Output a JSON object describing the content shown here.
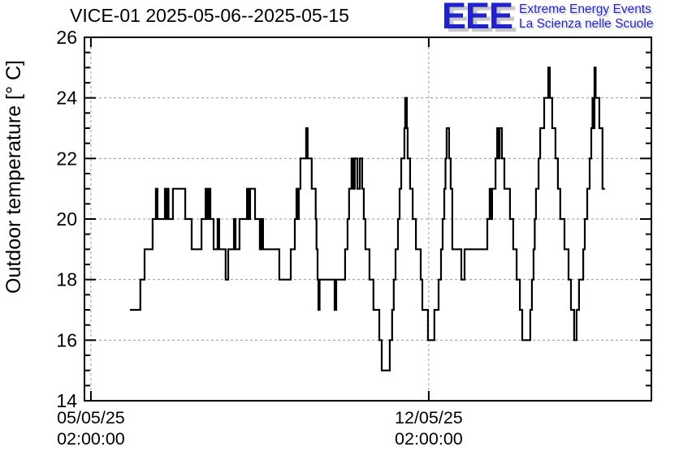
{
  "header": {
    "title": "VICE-01 2025-05-06--2025-05-15"
  },
  "logo": {
    "acronym": "EEE",
    "line1": "Extreme Energy Events",
    "line2": "La Scienza nelle Scuole",
    "blue": "#2222cc",
    "shadow_gray": "#c8c8c8"
  },
  "colors": {
    "line": "#000000",
    "frame": "#000000",
    "grid": "#9a9a9a",
    "text": "#000000"
  },
  "chart_data": {
    "type": "line",
    "style": "step",
    "title": "VICE-01 2025-05-06--2025-05-15",
    "xlabel": "",
    "ylabel": "Outdoor temperature [° C]",
    "grid": true,
    "y_range": [
      14,
      26
    ],
    "y_major_ticks": [
      14,
      16,
      18,
      20,
      22,
      24,
      26
    ],
    "y_minor_step": 0.5,
    "x_unit": "hours since 2025-05-05 00:00",
    "x_range_hours": [
      -1.2,
      280.7
    ],
    "x_ticks": [
      {
        "hours": 2,
        "line1": "05/05/25",
        "line2": "02:00:00"
      },
      {
        "hours": 170,
        "line1": "12/05/25",
        "line2": "02:00:00"
      }
    ],
    "points": [
      [
        21.4,
        17
      ],
      [
        26.6,
        18
      ],
      [
        28.7,
        19
      ],
      [
        32.7,
        20
      ],
      [
        34.3,
        21
      ],
      [
        35.1,
        20
      ],
      [
        38.8,
        21
      ],
      [
        39.4,
        20
      ],
      [
        40.0,
        21
      ],
      [
        40.6,
        20
      ],
      [
        42.8,
        21
      ],
      [
        48.9,
        20
      ],
      [
        52.1,
        19
      ],
      [
        57.0,
        20
      ],
      [
        59.0,
        21
      ],
      [
        59.8,
        20
      ],
      [
        60.6,
        21
      ],
      [
        61.4,
        20
      ],
      [
        63.0,
        19
      ],
      [
        65.0,
        20
      ],
      [
        65.8,
        19
      ],
      [
        69.0,
        18
      ],
      [
        70.3,
        19
      ],
      [
        73.1,
        20
      ],
      [
        73.9,
        19
      ],
      [
        75.9,
        20
      ],
      [
        79.6,
        21
      ],
      [
        80.4,
        20
      ],
      [
        81.2,
        21
      ],
      [
        83.6,
        20
      ],
      [
        86.0,
        19
      ],
      [
        86.8,
        20
      ],
      [
        87.6,
        19
      ],
      [
        95.7,
        18
      ],
      [
        101.4,
        19
      ],
      [
        103.4,
        20
      ],
      [
        104.2,
        21
      ],
      [
        104.6,
        20
      ],
      [
        105.4,
        21
      ],
      [
        106.2,
        22
      ],
      [
        109.0,
        23
      ],
      [
        109.8,
        22
      ],
      [
        111.8,
        21
      ],
      [
        113.8,
        20
      ],
      [
        114.2,
        19
      ],
      [
        114.7,
        18
      ],
      [
        115.1,
        17
      ],
      [
        115.7,
        18
      ],
      [
        123.2,
        17
      ],
      [
        124.0,
        18
      ],
      [
        128.4,
        19
      ],
      [
        129.6,
        20
      ],
      [
        130.4,
        21
      ],
      [
        131.6,
        22
      ],
      [
        132.4,
        21
      ],
      [
        133.2,
        22
      ],
      [
        134.5,
        21
      ],
      [
        135.7,
        22
      ],
      [
        136.9,
        21
      ],
      [
        137.7,
        20
      ],
      [
        138.5,
        19
      ],
      [
        140.5,
        18
      ],
      [
        142.5,
        17
      ],
      [
        145.4,
        16
      ],
      [
        146.6,
        15
      ],
      [
        150.6,
        16
      ],
      [
        151.8,
        17
      ],
      [
        152.6,
        18
      ],
      [
        153.5,
        19
      ],
      [
        154.7,
        20
      ],
      [
        155.5,
        21
      ],
      [
        156.3,
        22
      ],
      [
        157.9,
        23
      ],
      [
        158.3,
        24
      ],
      [
        159.1,
        23
      ],
      [
        159.5,
        22
      ],
      [
        160.7,
        21
      ],
      [
        162.0,
        20
      ],
      [
        163.6,
        19
      ],
      [
        166.0,
        18
      ],
      [
        166.8,
        17
      ],
      [
        169.6,
        16
      ],
      [
        172.8,
        17
      ],
      [
        174.9,
        18
      ],
      [
        176.1,
        19
      ],
      [
        176.9,
        20
      ],
      [
        177.7,
        21
      ],
      [
        178.3,
        22
      ],
      [
        178.9,
        23
      ],
      [
        180.1,
        22
      ],
      [
        180.9,
        21
      ],
      [
        181.7,
        19
      ],
      [
        186.2,
        18
      ],
      [
        187.8,
        19
      ],
      [
        199.1,
        20
      ],
      [
        200.3,
        21
      ],
      [
        200.9,
        20
      ],
      [
        201.5,
        21
      ],
      [
        203.2,
        22
      ],
      [
        204.0,
        23
      ],
      [
        204.6,
        22
      ],
      [
        205.2,
        23
      ],
      [
        206.4,
        22
      ],
      [
        207.6,
        21
      ],
      [
        210.4,
        20
      ],
      [
        212.0,
        19
      ],
      [
        213.7,
        18
      ],
      [
        215.3,
        17
      ],
      [
        216.5,
        16
      ],
      [
        220.5,
        17
      ],
      [
        221.3,
        18
      ],
      [
        222.1,
        19
      ],
      [
        222.7,
        20
      ],
      [
        223.3,
        21
      ],
      [
        224.6,
        22
      ],
      [
        225.4,
        23
      ],
      [
        227.4,
        24
      ],
      [
        229.4,
        25
      ],
      [
        230.2,
        24
      ],
      [
        231.4,
        23
      ],
      [
        233.0,
        22
      ],
      [
        234.2,
        21
      ],
      [
        235.4,
        20
      ],
      [
        237.5,
        19
      ],
      [
        239.5,
        18
      ],
      [
        240.7,
        17
      ],
      [
        242.3,
        16
      ],
      [
        243.5,
        17
      ],
      [
        244.7,
        18
      ],
      [
        246.8,
        19
      ],
      [
        247.6,
        20
      ],
      [
        248.8,
        21
      ],
      [
        250.0,
        22
      ],
      [
        250.8,
        23
      ],
      [
        251.4,
        24
      ],
      [
        252.0,
        23
      ],
      [
        252.4,
        25
      ],
      [
        253.0,
        24
      ],
      [
        254.8,
        23
      ],
      [
        256.4,
        21
      ],
      [
        257.6,
        21
      ]
    ]
  }
}
